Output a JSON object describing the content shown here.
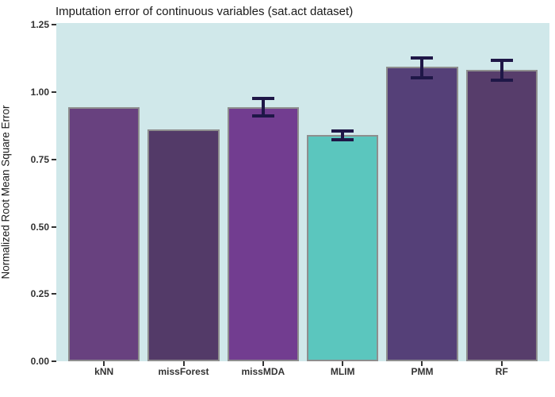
{
  "chart_data": {
    "type": "bar",
    "title": "Imputation error of continuous variables (sat.act dataset)",
    "xlabel": "",
    "ylabel": "Normalized Root Mean Square Error",
    "categories": [
      "kNN",
      "missForest",
      "missMDA",
      "MLIM",
      "PMM",
      "RF"
    ],
    "values": [
      0.943,
      0.862,
      0.944,
      0.841,
      1.093,
      1.082
    ],
    "error_bars": [
      null,
      null,
      {
        "low": 0.912,
        "high": 0.976
      },
      {
        "low": 0.822,
        "high": 0.856
      },
      {
        "low": 1.053,
        "high": 1.126
      },
      {
        "low": 1.044,
        "high": 1.117
      }
    ],
    "bar_colors": [
      "#68417f",
      "#533a68",
      "#723d90",
      "#5bc6be",
      "#554078",
      "#573d6b"
    ],
    "yticks": [
      "0.00",
      "0.25",
      "0.50",
      "0.75",
      "1.00",
      "1.25"
    ],
    "ytick_values": [
      0.0,
      0.25,
      0.5,
      0.75,
      1.0,
      1.25
    ],
    "ylim": [
      0,
      1.257
    ],
    "grid": false,
    "legend": null,
    "colors": {
      "plot_background": "#d0e8ea",
      "bar_border": "#8e8e8e",
      "error_bar": "#1f1747",
      "tick_text": "#333333",
      "title_text": "#1a1a1a"
    }
  }
}
